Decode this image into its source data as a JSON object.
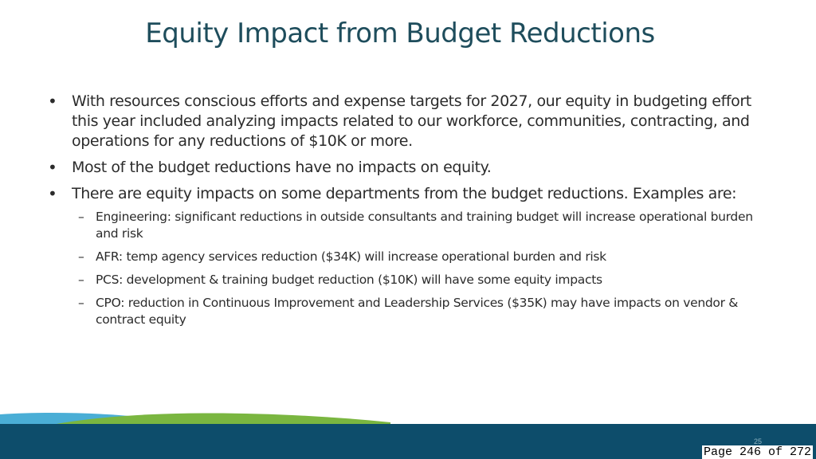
{
  "slide": {
    "title": "Equity Impact from Budget Reductions",
    "bullets": [
      "With resources conscious efforts and expense targets for 2027, our equity in budgeting effort this year included analyzing impacts related to our workforce, communities, contracting, and operations for any reductions of $10K or more.",
      "Most of the budget reductions have no impacts on equity.",
      "There are equity impacts on some departments from the budget reductions. Examples are:"
    ],
    "sub_bullets": [
      "Engineering: significant reductions in outside consultants and training budget will increase operational burden and risk",
      "AFR: temp agency services reduction ($34K) will increase operational burden and risk",
      "PCS: development & training budget reduction ($10K) will have some equity impacts",
      "CPO: reduction in Continuous Improvement and Leadership Services ($35K) may have impacts on vendor & contract equity"
    ],
    "slide_number": "25"
  },
  "page_counter": "Page 246 of 272",
  "colors": {
    "title": "#1e4d5c",
    "footer_navy": "#0d4d6b",
    "footer_blue": "#4aaed6",
    "footer_green": "#7ab640"
  }
}
